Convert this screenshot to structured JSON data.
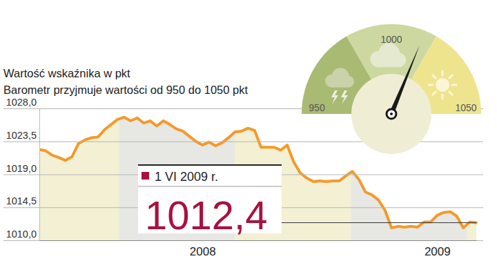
{
  "chart_data": {
    "type": "line",
    "title": "Wartość wskaźnika w pkt",
    "subtitle": "Barometr przyjmuje wartości od 950 do 1050 pkt",
    "categories": [
      null,
      null,
      null,
      null,
      null,
      null,
      null,
      null,
      null,
      null,
      null,
      null,
      null,
      null,
      null,
      null,
      null,
      null,
      null,
      null,
      null,
      null,
      null,
      null,
      null,
      "2008",
      null,
      null,
      null,
      null,
      null,
      null,
      null,
      null,
      null,
      null,
      null,
      null,
      null,
      null,
      null,
      null,
      null,
      null,
      null,
      null,
      null,
      null,
      null,
      null,
      null,
      null,
      null,
      null,
      null,
      null,
      null,
      null,
      null,
      null,
      null,
      "2009",
      null,
      null,
      null,
      null,
      null,
      null
    ],
    "values": [
      1022.4,
      1022.2,
      1021.6,
      1021.3,
      1020.9,
      1021.4,
      1023.2,
      1023.7,
      1024.0,
      1024.1,
      1025.1,
      1025.8,
      1026.5,
      1026.8,
      1026.3,
      1026.7,
      1026.0,
      1026.3,
      1025.6,
      1026.3,
      1025.8,
      1025.2,
      1024.9,
      1024.2,
      1023.5,
      1023.0,
      1023.4,
      1022.9,
      1023.3,
      1024.0,
      1024.8,
      1024.9,
      1025.3,
      1025.0,
      1022.7,
      1022.7,
      1022.7,
      1022.3,
      1023.0,
      1020.7,
      1019.2,
      1018.5,
      1018.0,
      1018.1,
      1018.0,
      1018.1,
      1018.1,
      1018.8,
      1019.4,
      1018.3,
      1016.6,
      1016.2,
      1015.5,
      1014.1,
      1011.7,
      1011.9,
      1011.8,
      1011.9,
      1011.8,
      1012.5,
      1012.5,
      1013.4,
      1013.8,
      1013.9,
      1013.3,
      1011.7,
      1012.5,
      1012.4
    ],
    "color": "#f39a2c",
    "ylim": [
      1010,
      1028
    ],
    "yticks": [
      {
        "value": 1010,
        "label": "1010,0"
      },
      {
        "value": 1014.5,
        "label": "1014,5"
      },
      {
        "value": 1019,
        "label": "1019,0"
      },
      {
        "value": 1023.5,
        "label": "1023,5"
      },
      {
        "value": 1028,
        "label": "1028,0"
      }
    ],
    "grid": true,
    "annotation": {
      "date": "1 VI 2009 r.",
      "value": 1012.4,
      "label": "1012,4"
    },
    "gauge": {
      "range": [
        950,
        1050
      ],
      "ticks": [
        950,
        1000,
        1050
      ],
      "value": 1012.4
    }
  }
}
